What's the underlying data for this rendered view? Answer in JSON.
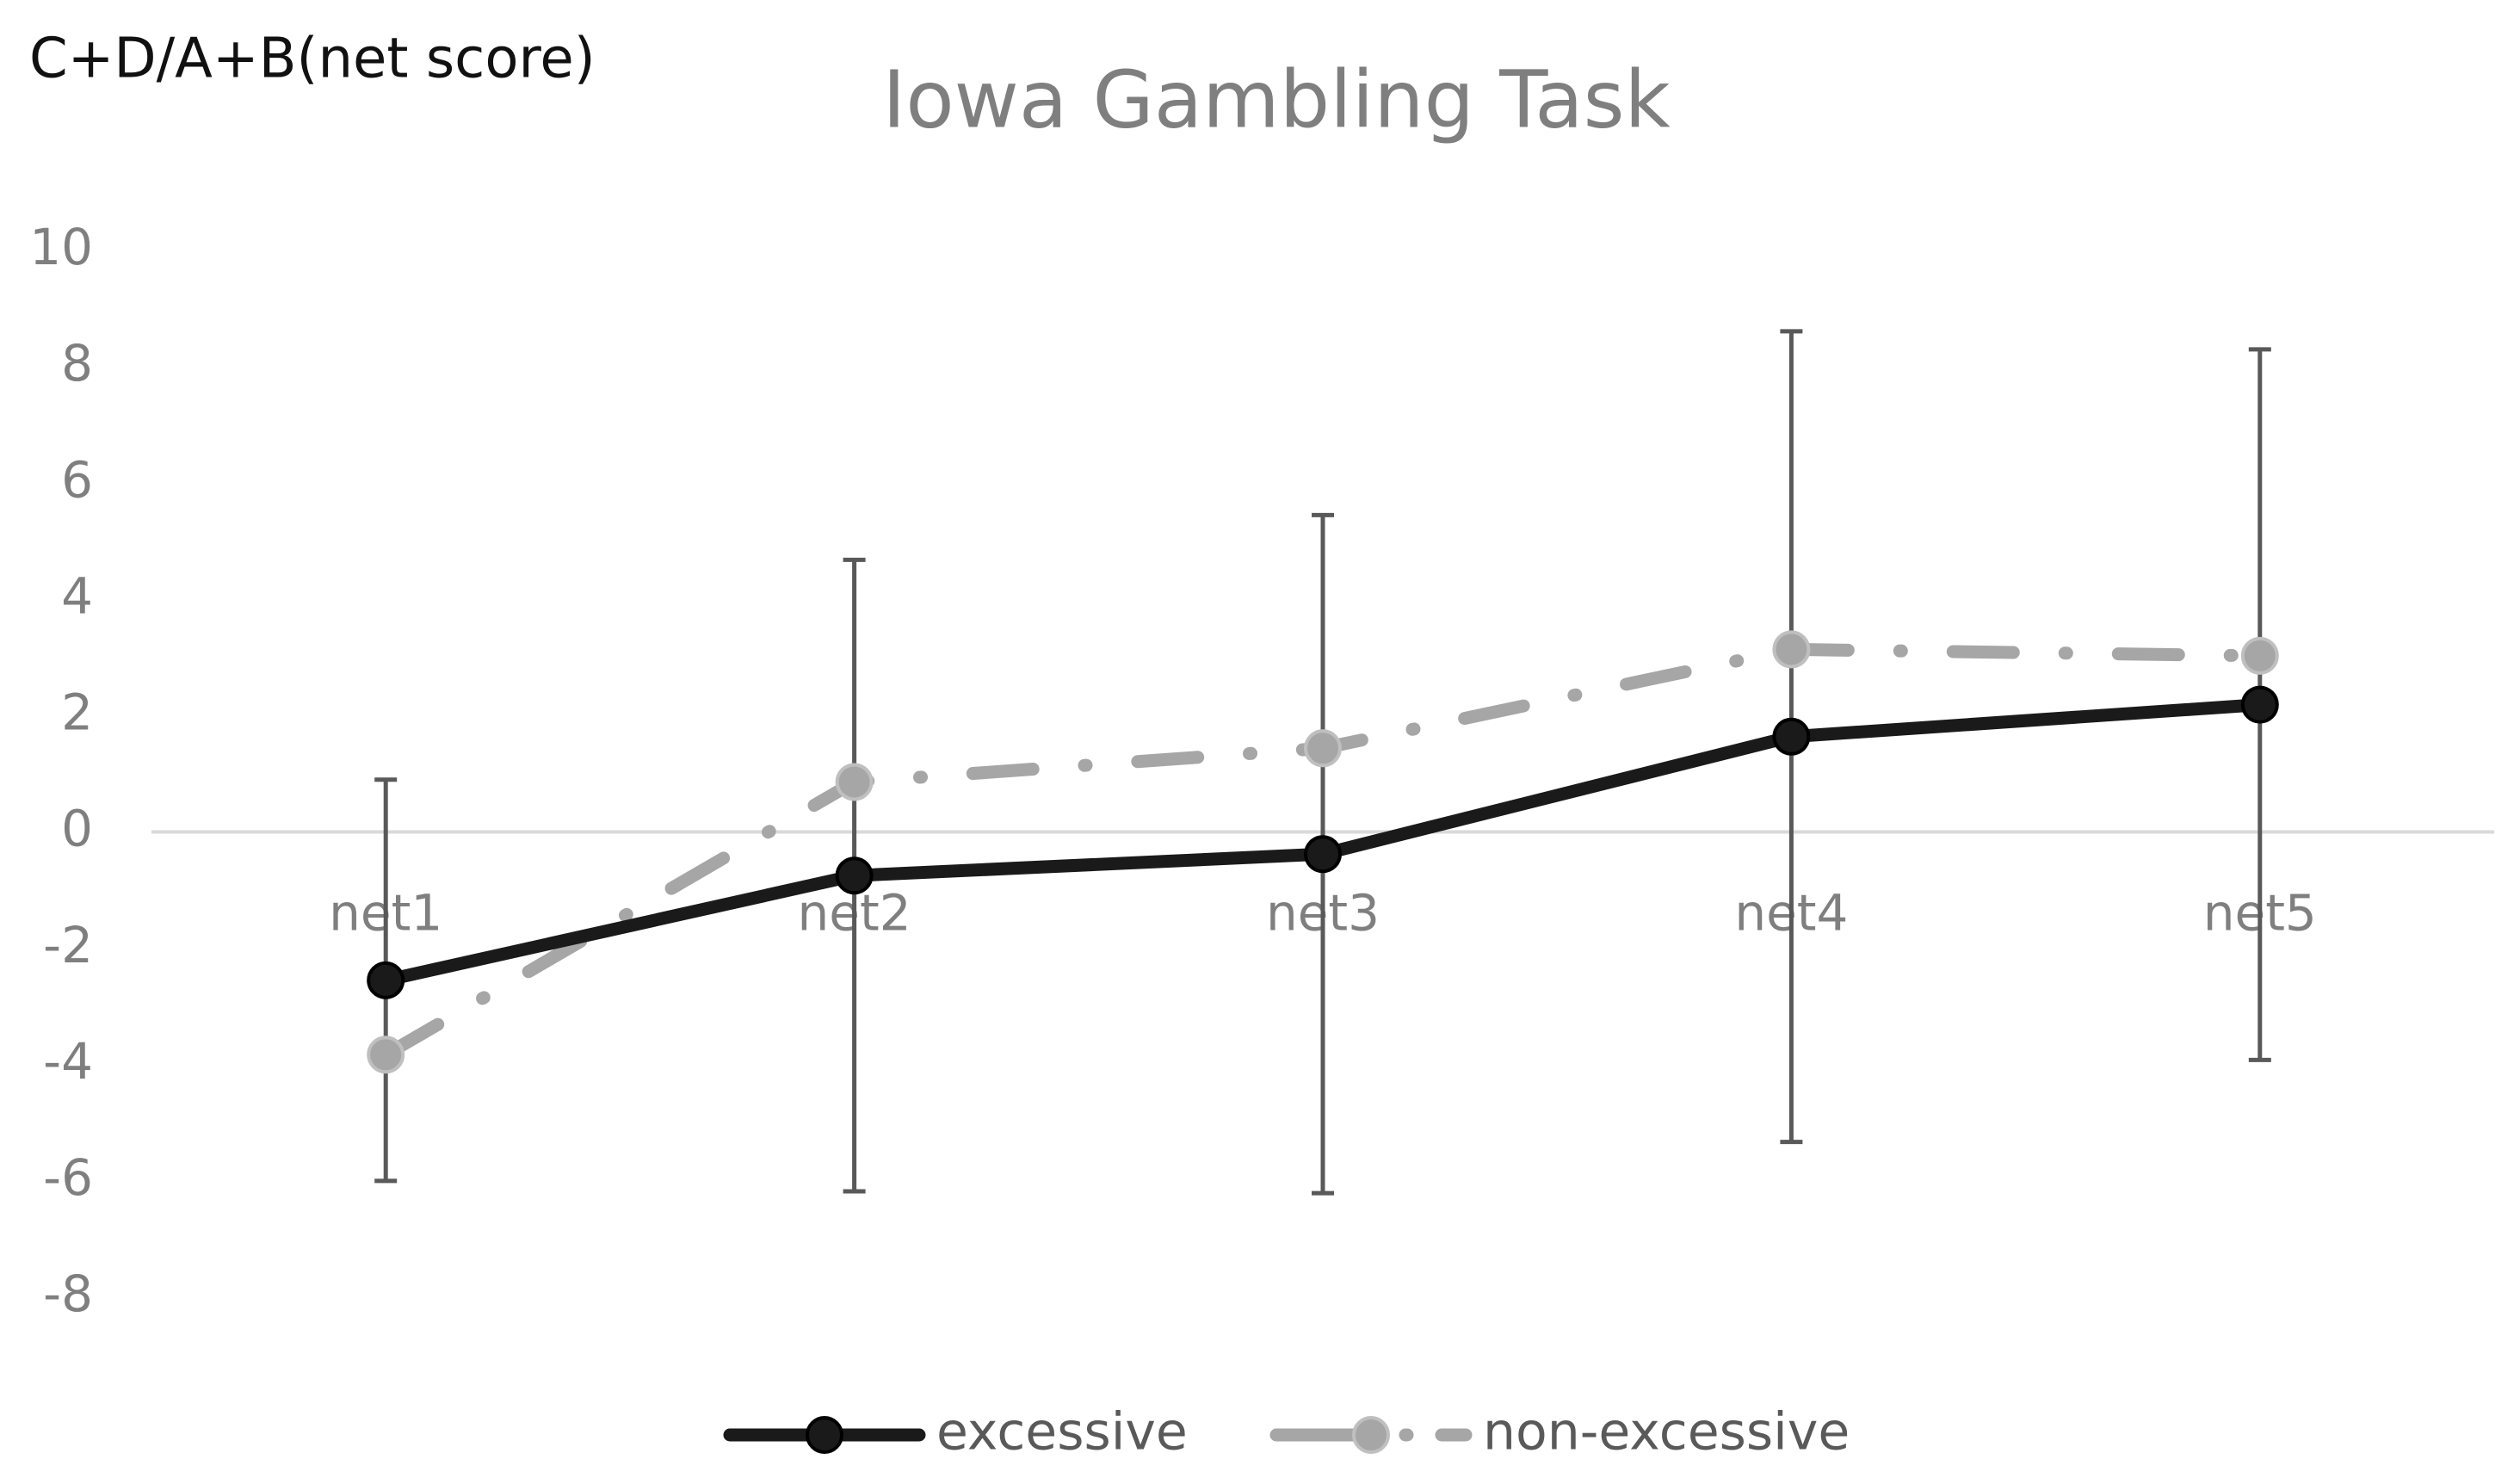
{
  "chart_data": {
    "type": "line",
    "title": "Iowa Gambling Task",
    "y_label": "C+D/A+B(net score)",
    "categories": [
      "net1",
      "net2",
      "net3",
      "net4",
      "net5"
    ],
    "series": [
      {
        "name": "excessive",
        "color": "#1a1a1a",
        "dash": "solid",
        "values": [
          -2.55,
          -0.75,
          -0.38,
          1.64,
          2.19
        ],
        "errors": [
          3.45,
          5.43,
          5.83,
          6.97,
          6.11
        ]
      },
      {
        "name": "non-excessive",
        "color": "#a6a6a6",
        "dash": "dash-dot",
        "values": [
          -3.83,
          0.86,
          1.44,
          3.14,
          3.03
        ]
      }
    ],
    "ylim": [
      -8,
      10
    ],
    "yticks": [
      -8,
      -6,
      -4,
      -2,
      0,
      2,
      4,
      6,
      8,
      10
    ],
    "grid": false,
    "legend": "bottom"
  }
}
